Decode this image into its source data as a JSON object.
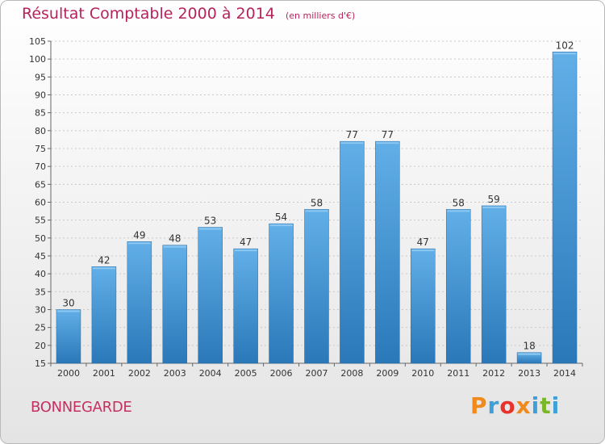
{
  "header": {
    "title": "Résultat Comptable 2000 à 2014",
    "unit": "(en milliers d'€)"
  },
  "footer": {
    "commune": "BONNEGARDE",
    "logo_text": "Proxiti",
    "logo_colors": [
      "#f08a1c",
      "#3da0d8",
      "#e8322c",
      "#f08a1c",
      "#3da0d8",
      "#7ab828",
      "#3da0d8"
    ]
  },
  "colors": {
    "title": "#b4235b",
    "bar_light": "#62afe8",
    "bar_dark": "#2a78b8",
    "label": "#333333"
  },
  "chart_data": {
    "type": "bar",
    "title": "Résultat Comptable 2000 à 2014",
    "subtitle": "(en milliers d'€)",
    "categories": [
      "2000",
      "2001",
      "2002",
      "2003",
      "2004",
      "2005",
      "2006",
      "2007",
      "2008",
      "2009",
      "2010",
      "2011",
      "2012",
      "2013",
      "2014"
    ],
    "values": [
      30,
      42,
      49,
      48,
      53,
      47,
      54,
      58,
      77,
      77,
      47,
      58,
      59,
      18,
      102
    ],
    "ylim": [
      15,
      105
    ],
    "ytick_step": 5,
    "grid": true,
    "data_labels": true
  }
}
